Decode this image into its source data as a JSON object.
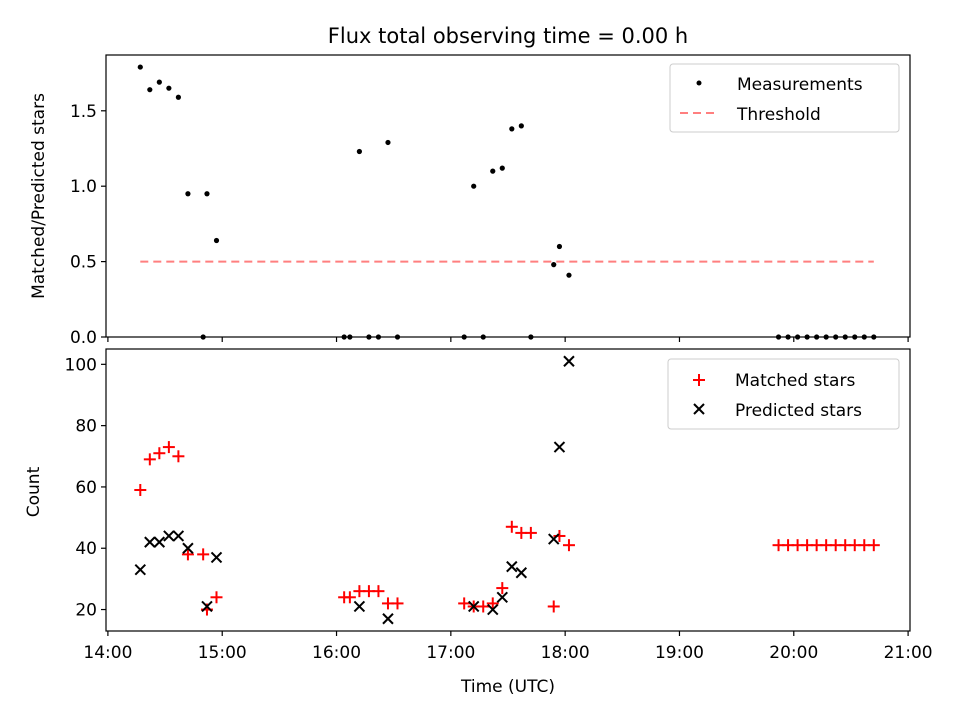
{
  "chart_data": [
    {
      "type": "scatter",
      "title": "Flux total observing time = 0.00 h",
      "xlabel": "",
      "ylabel": "Matched/Predicted stars",
      "xlim": [
        "13:59",
        "21:01"
      ],
      "ylim": [
        0,
        1.87
      ],
      "yticks": [
        {
          "value": 0.0,
          "label": "0.0"
        },
        {
          "value": 0.5,
          "label": "0.5"
        },
        {
          "value": 1.0,
          "label": "1.0"
        },
        {
          "value": 1.5,
          "label": "1.5"
        }
      ],
      "legend_position": "top-right",
      "grid": false,
      "series": [
        {
          "name": "Measurements",
          "marker": "dot",
          "color": "#000000",
          "points": [
            [
              "14:17",
              1.79
            ],
            [
              "14:22",
              1.64
            ],
            [
              "14:27",
              1.69
            ],
            [
              "14:32",
              1.65
            ],
            [
              "14:37",
              1.59
            ],
            [
              "14:42",
              0.95
            ],
            [
              "14:50",
              0.0
            ],
            [
              "14:52",
              0.95
            ],
            [
              "14:57",
              0.64
            ],
            [
              "16:04",
              0.0
            ],
            [
              "16:07",
              0.0
            ],
            [
              "16:12",
              1.23
            ],
            [
              "16:17",
              0.0
            ],
            [
              "16:22",
              0.0
            ],
            [
              "16:27",
              1.29
            ],
            [
              "16:32",
              0.0
            ],
            [
              "17:07",
              0.0
            ],
            [
              "17:12",
              1.0
            ],
            [
              "17:17",
              0.0
            ],
            [
              "17:22",
              1.1
            ],
            [
              "17:27",
              1.12
            ],
            [
              "17:32",
              1.38
            ],
            [
              "17:37",
              1.4
            ],
            [
              "17:42",
              0.0
            ],
            [
              "17:54",
              0.48
            ],
            [
              "17:57",
              0.6
            ],
            [
              "18:02",
              0.41
            ],
            [
              "19:52",
              0.0
            ],
            [
              "19:57",
              0.0
            ],
            [
              "20:02",
              0.0
            ],
            [
              "20:07",
              0.0
            ],
            [
              "20:12",
              0.0
            ],
            [
              "20:17",
              0.0
            ],
            [
              "20:22",
              0.0
            ],
            [
              "20:27",
              0.0
            ],
            [
              "20:32",
              0.0
            ],
            [
              "20:37",
              0.0
            ],
            [
              "20:42",
              0.0
            ]
          ]
        },
        {
          "name": "Threshold",
          "marker": "dashed-line",
          "color": "#ff7f7f",
          "points": [
            [
              "14:17",
              0.5
            ],
            [
              "20:42",
              0.5
            ]
          ]
        }
      ]
    },
    {
      "type": "scatter",
      "title": "",
      "xlabel": "Time (UTC)",
      "ylabel": "Count",
      "xlim": [
        "13:59",
        "21:01"
      ],
      "ylim": [
        13,
        105
      ],
      "yticks": [
        {
          "value": 20,
          "label": "20"
        },
        {
          "value": 40,
          "label": "40"
        },
        {
          "value": 60,
          "label": "60"
        },
        {
          "value": 80,
          "label": "80"
        },
        {
          "value": 100,
          "label": "100"
        }
      ],
      "xticks": [
        {
          "value": "14:00",
          "label": "14:00"
        },
        {
          "value": "15:00",
          "label": "15:00"
        },
        {
          "value": "16:00",
          "label": "16:00"
        },
        {
          "value": "17:00",
          "label": "17:00"
        },
        {
          "value": "18:00",
          "label": "18:00"
        },
        {
          "value": "19:00",
          "label": "19:00"
        },
        {
          "value": "20:00",
          "label": "20:00"
        },
        {
          "value": "21:00",
          "label": "21:00"
        }
      ],
      "legend_position": "top-right",
      "grid": false,
      "series": [
        {
          "name": "Matched stars",
          "marker": "plus",
          "color": "#ff0000",
          "points": [
            [
              "14:17",
              59
            ],
            [
              "14:22",
              69
            ],
            [
              "14:27",
              71
            ],
            [
              "14:32",
              73
            ],
            [
              "14:37",
              70
            ],
            [
              "14:42",
              38
            ],
            [
              "14:50",
              38
            ],
            [
              "14:52",
              20
            ],
            [
              "14:57",
              24
            ],
            [
              "16:04",
              24
            ],
            [
              "16:07",
              24
            ],
            [
              "16:12",
              26
            ],
            [
              "16:17",
              26
            ],
            [
              "16:22",
              26
            ],
            [
              "16:27",
              22
            ],
            [
              "16:32",
              22
            ],
            [
              "17:07",
              22
            ],
            [
              "17:12",
              21
            ],
            [
              "17:17",
              21
            ],
            [
              "17:22",
              22
            ],
            [
              "17:27",
              27
            ],
            [
              "17:32",
              47
            ],
            [
              "17:37",
              45
            ],
            [
              "17:42",
              45
            ],
            [
              "17:54",
              21
            ],
            [
              "17:57",
              44
            ],
            [
              "18:02",
              41
            ],
            [
              "19:52",
              41
            ],
            [
              "19:57",
              41
            ],
            [
              "20:02",
              41
            ],
            [
              "20:07",
              41
            ],
            [
              "20:12",
              41
            ],
            [
              "20:17",
              41
            ],
            [
              "20:22",
              41
            ],
            [
              "20:27",
              41
            ],
            [
              "20:32",
              41
            ],
            [
              "20:37",
              41
            ],
            [
              "20:42",
              41
            ]
          ]
        },
        {
          "name": "Predicted stars",
          "marker": "x",
          "color": "#000000",
          "points": [
            [
              "14:17",
              33
            ],
            [
              "14:22",
              42
            ],
            [
              "14:27",
              42
            ],
            [
              "14:32",
              44
            ],
            [
              "14:37",
              44
            ],
            [
              "14:42",
              40
            ],
            [
              "14:52",
              21
            ],
            [
              "14:57",
              37
            ],
            [
              "16:12",
              21
            ],
            [
              "16:27",
              17
            ],
            [
              "17:12",
              21
            ],
            [
              "17:22",
              20
            ],
            [
              "17:27",
              24
            ],
            [
              "17:32",
              34
            ],
            [
              "17:37",
              32
            ],
            [
              "17:54",
              43
            ],
            [
              "17:57",
              73
            ],
            [
              "18:02",
              101
            ]
          ]
        }
      ]
    }
  ]
}
